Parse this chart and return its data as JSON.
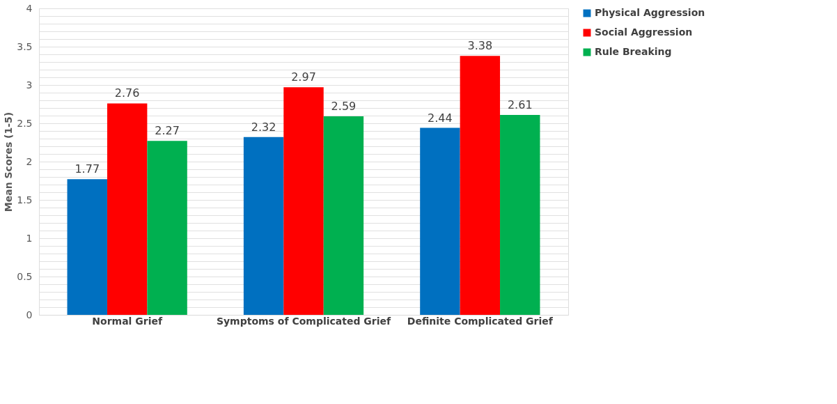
{
  "chart_data": {
    "type": "bar",
    "ylabel": "Mean Scores (1-5)",
    "categories": [
      "Normal Grief",
      "Symptoms of Complicated Grief",
      "Definite Complicated Grief"
    ],
    "series": [
      {
        "name": "Physical Aggression",
        "color": "#0070c0",
        "values": [
          1.77,
          2.32,
          2.44
        ]
      },
      {
        "name": "Social Aggression",
        "color": "#ff0000",
        "values": [
          2.76,
          2.97,
          3.38
        ]
      },
      {
        "name": "Rule Breaking",
        "color": "#00b050",
        "values": [
          2.27,
          2.59,
          2.61
        ]
      }
    ],
    "ylim": [
      0,
      4
    ],
    "yticks": [
      0,
      {
        "value": 0.1,
        "label": null
      },
      {
        "value": 0.2,
        "label": null
      },
      {
        "value": 0.3,
        "label": null
      },
      {
        "value": 0.4,
        "label": null
      },
      0.5,
      {
        "value": 0.6,
        "label": null
      },
      {
        "value": 0.7,
        "label": null
      },
      {
        "value": 0.8,
        "label": null
      },
      {
        "value": 0.9,
        "label": null
      },
      1,
      {
        "value": 1.1,
        "label": null
      },
      {
        "value": 1.2,
        "label": null
      },
      {
        "value": 1.3,
        "label": null
      },
      {
        "value": 1.4,
        "label": null
      },
      1.5,
      {
        "value": 1.6,
        "label": null
      },
      {
        "value": 1.7,
        "label": null
      },
      {
        "value": 1.8,
        "label": null
      },
      {
        "value": 1.9,
        "label": null
      },
      2,
      {
        "value": 2.1,
        "label": null
      },
      {
        "value": 2.2,
        "label": null
      },
      {
        "value": 2.3,
        "label": null
      },
      {
        "value": 2.4,
        "label": null
      },
      2.5,
      {
        "value": 2.6,
        "label": null
      },
      {
        "value": 2.7,
        "label": null
      },
      {
        "value": 2.8,
        "label": null
      },
      {
        "value": 2.9,
        "label": null
      },
      3,
      {
        "value": 3.1,
        "label": null
      },
      {
        "value": 3.2,
        "label": null
      },
      {
        "value": 3.3,
        "label": null
      },
      {
        "value": 3.4,
        "label": null
      },
      3.5,
      {
        "value": 3.6,
        "label": null
      },
      {
        "value": 3.7,
        "label": null
      },
      {
        "value": 3.8,
        "label": null
      },
      {
        "value": 3.9,
        "label": null
      },
      4
    ],
    "grid": "y",
    "legend": "right",
    "data_labels": true
  }
}
